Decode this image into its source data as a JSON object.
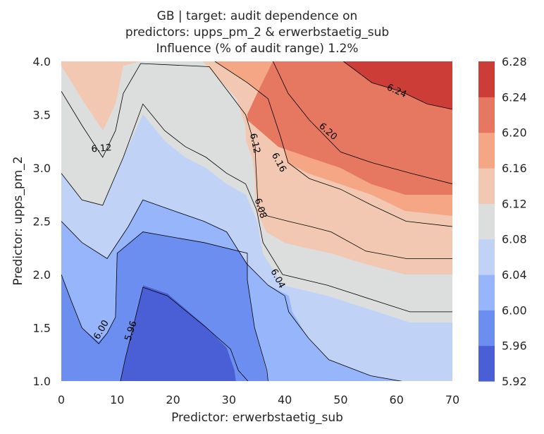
{
  "chart_data": {
    "type": "contour",
    "title": [
      "GB | target: audit dependence on",
      "predictors: upps_pm_2 & erwerbstaetig_sub",
      "Influence (% of audit range) 1.2%"
    ],
    "xlabel": "Predictor: erwerbstaetig_sub",
    "ylabel": "Predictor: upps_pm_2",
    "xlim": [
      0,
      70
    ],
    "ylim": [
      1.0,
      4.0
    ],
    "x_ticks": [
      0,
      10,
      20,
      30,
      40,
      50,
      60,
      70
    ],
    "y_ticks": [
      1.0,
      1.5,
      2.0,
      2.5,
      3.0,
      3.5,
      4.0
    ],
    "grid": false,
    "colorbar": {
      "levels": [
        5.92,
        5.96,
        6.0,
        6.04,
        6.08,
        6.12,
        6.16,
        6.2,
        6.24,
        6.28
      ],
      "colors": [
        "#4a5fd6",
        "#6c8ef0",
        "#97b5fb",
        "#c0d3f7",
        "#dcdddd",
        "#f2c8b2",
        "#f5a684",
        "#e67760",
        "#cc3d37"
      ],
      "placement": "right"
    },
    "contour_lines": [
      {
        "level": 5.96,
        "x": [
          10.6,
          11.4,
          14.6,
          19.0,
          26.0,
          30.3,
          31.7,
          33.4
        ],
        "y": [
          1.0,
          1.2,
          1.88,
          1.8,
          1.5,
          1.3,
          1.1,
          1.0
        ]
      },
      {
        "level": 6.0,
        "x": [
          0,
          1.8,
          3.7,
          6.7,
          8.2,
          9.7,
          10.0,
          14.6,
          25.5,
          33.3,
          33.3,
          34.6,
          36.8,
          37.0
        ],
        "y": [
          2.0,
          1.75,
          1.5,
          1.35,
          1.45,
          1.6,
          2.2,
          2.4,
          2.3,
          2.2,
          1.95,
          1.5,
          1.1,
          1.0
        ]
      },
      {
        "level": 6.04,
        "x": [
          0,
          3.7,
          8.2,
          12.0,
          14.6,
          20.0,
          25.5,
          29.6,
          33.2,
          37.0,
          40.0,
          40.7,
          44.3,
          47.9,
          55.4,
          62.8,
          70.0
        ],
        "y": [
          2.5,
          2.3,
          2.15,
          2.45,
          2.7,
          2.6,
          2.5,
          2.4,
          2.1,
          1.9,
          1.8,
          1.65,
          1.4,
          1.2,
          1.05,
          0.98,
          0.98
        ]
      },
      {
        "level": 6.08,
        "x": [
          0,
          3.7,
          7.4,
          11.1,
          14.6,
          18.5,
          22.2,
          25.9,
          29.6,
          33.0,
          35.0,
          36.1,
          39.6,
          47.6,
          62.4,
          70.0
        ],
        "y": [
          2.95,
          2.7,
          2.65,
          3.1,
          3.6,
          3.35,
          3.2,
          3.1,
          2.95,
          2.85,
          2.6,
          2.3,
          2.0,
          1.9,
          1.65,
          1.65
        ]
      },
      {
        "level": 6.12,
        "x": [
          0,
          3.7,
          7.4,
          9.7,
          11.1,
          14.2,
          26.5,
          33.0,
          34.7,
          34.8,
          35.0,
          35.2,
          36.9,
          40.6,
          44.6,
          48.3,
          54.5,
          61.7,
          70.0
        ],
        "y": [
          3.72,
          3.4,
          3.1,
          3.35,
          3.7,
          3.98,
          3.95,
          3.5,
          3.2,
          3.05,
          2.85,
          2.65,
          2.55,
          2.5,
          2.45,
          2.4,
          2.22,
          2.15,
          2.15
        ]
      },
      {
        "level": 6.16,
        "x": [
          27.5,
          33.3,
          37.0,
          39.2,
          40.6,
          44.4,
          50.0,
          55.6,
          61.7,
          70.0
        ],
        "y": [
          4.0,
          3.8,
          3.65,
          3.3,
          3.05,
          2.9,
          2.8,
          2.65,
          2.5,
          2.45
        ]
      },
      {
        "level": 6.2,
        "x": [
          37.9,
          40.6,
          44.4,
          50.0,
          55.6,
          62.6,
          70.0
        ],
        "y": [
          4.0,
          3.7,
          3.45,
          3.15,
          3.05,
          2.95,
          2.85
        ]
      },
      {
        "level": 6.24,
        "x": [
          50.5,
          55.6,
          60.7,
          65.5,
          70.0
        ],
        "y": [
          4.0,
          3.8,
          3.72,
          3.6,
          3.55
        ]
      }
    ],
    "contour_labels": [
      {
        "text": "5.96",
        "x": 12.5,
        "y": 1.47,
        "angle": -72
      },
      {
        "text": "6.00",
        "x": 7.2,
        "y": 1.48,
        "angle": -60
      },
      {
        "text": "6.04",
        "x": 38.7,
        "y": 1.96,
        "angle": 62
      },
      {
        "text": "6.08",
        "x": 35.6,
        "y": 2.62,
        "angle": 72
      },
      {
        "text": "6.12",
        "x": 7.2,
        "y": 3.18,
        "angle": -5
      },
      {
        "text": "6.12",
        "x": 34.6,
        "y": 3.23,
        "angle": 78
      },
      {
        "text": "6.16",
        "x": 38.9,
        "y": 3.05,
        "angle": 62
      },
      {
        "text": "6.20",
        "x": 47.7,
        "y": 3.34,
        "angle": 42
      },
      {
        "text": "6.24",
        "x": 60.0,
        "y": 3.72,
        "angle": 24
      }
    ]
  }
}
